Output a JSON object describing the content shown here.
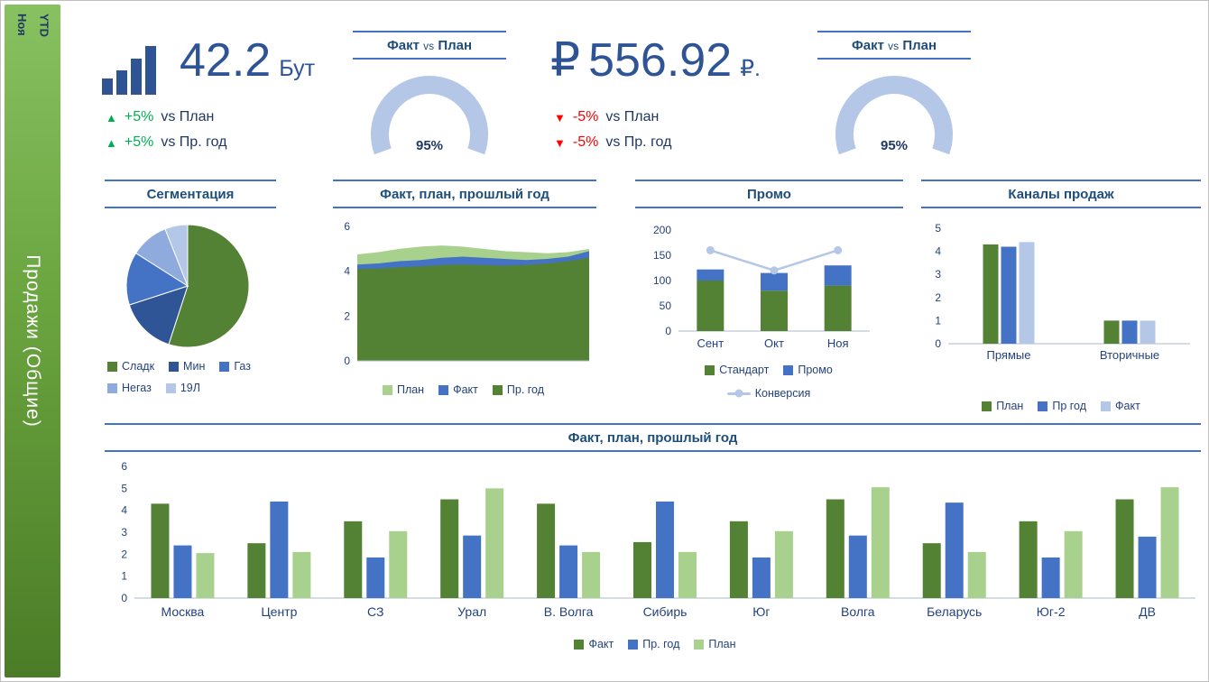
{
  "sidebar": {
    "period": "Ноя\nYTD",
    "title": "Продажи (Общие)"
  },
  "kpis": [
    {
      "currency": "",
      "value": "42.2",
      "unit": "Бут",
      "deltas": [
        {
          "glyph": "▲",
          "value": "+5%",
          "label": "vs План",
          "direction": "up"
        },
        {
          "glyph": "▲",
          "value": "+5%",
          "label": "vs Пр. год",
          "direction": "up"
        }
      ]
    },
    {
      "currency": "₽",
      "value": "556.92",
      "unit": "₽.",
      "deltas": [
        {
          "glyph": "▼",
          "value": "-5%",
          "label": "vs План",
          "direction": "down"
        },
        {
          "glyph": "▼",
          "value": "-5%",
          "label": "vs Пр. год",
          "direction": "down"
        }
      ]
    }
  ],
  "gauges": [
    {
      "title": [
        "Факт",
        "vs",
        "План"
      ],
      "value": 95,
      "label": "95%",
      "color": "#b4c7e7"
    },
    {
      "title": [
        "Факт",
        "vs",
        "План"
      ],
      "value": 95,
      "label": "95%",
      "color": "#b4c7e7"
    }
  ],
  "colors": {
    "dark_green": "#548235",
    "blue": "#4472c4",
    "light_green": "#a9d18e",
    "periwinkle": "#b4c7e7",
    "navy": "#1f3864",
    "value_blue": "#2f5496",
    "up_green": "#00b050",
    "down_red": "#ff0000",
    "title_line_blue": "#4472c4"
  },
  "chart_data": [
    {
      "id": "segmentation",
      "type": "pie",
      "title": "Сегментация",
      "labels": [
        "Сладк",
        "Мин",
        "Газ",
        "Негаз",
        "19Л"
      ],
      "values": [
        55,
        15,
        14,
        10,
        6
      ],
      "colors": [
        "#548235",
        "#2f5597",
        "#4472c4",
        "#8faadc",
        "#b4c7e7"
      ],
      "legend_position": "bottom"
    },
    {
      "id": "fact-plan-prev-area",
      "type": "area",
      "title": "Факт, план, прошлый год",
      "ylim": [
        0,
        6
      ],
      "yticks": [
        0,
        2,
        4,
        6
      ],
      "series": [
        {
          "name": "План",
          "color": "#a9d18e",
          "values": [
            4.75,
            4.85,
            5.0,
            5.1,
            5.15,
            5.1,
            5.0,
            4.9,
            4.85,
            4.8,
            4.85,
            5.0
          ]
        },
        {
          "name": "Факт",
          "color": "#4472c4",
          "values": [
            4.3,
            4.35,
            4.45,
            4.5,
            4.6,
            4.65,
            4.6,
            4.55,
            4.5,
            4.55,
            4.65,
            4.9
          ]
        },
        {
          "name": "Пр. год",
          "color": "#548235",
          "values": [
            4.1,
            4.12,
            4.18,
            4.22,
            4.28,
            4.3,
            4.28,
            4.25,
            4.28,
            4.35,
            4.45,
            4.6
          ]
        }
      ],
      "legend_position": "bottom"
    },
    {
      "id": "promo",
      "type": "stacked-bar-line",
      "title": "Промо",
      "categories": [
        "Сент",
        "Окт",
        "Ноя"
      ],
      "ylim": [
        0,
        200
      ],
      "yticks": [
        0,
        50,
        100,
        150,
        200
      ],
      "bars": [
        {
          "name": "Стандарт",
          "color": "#548235",
          "values": [
            100,
            80,
            90
          ]
        },
        {
          "name": "Промо",
          "color": "#4472c4",
          "values": [
            22,
            35,
            40
          ]
        }
      ],
      "line": {
        "name": "Конверсия",
        "color": "#b4c7e7",
        "values": [
          160,
          120,
          160
        ]
      },
      "legend_position": "bottom"
    },
    {
      "id": "channels",
      "type": "grouped-bar",
      "title": "Каналы продаж",
      "categories": [
        "Прямые",
        "Вторичные"
      ],
      "ylim": [
        0,
        5
      ],
      "yticks": [
        0,
        1,
        2,
        3,
        4,
        5
      ],
      "series": [
        {
          "name": "План",
          "color": "#548235",
          "values": [
            4.3,
            1.0
          ]
        },
        {
          "name": "Пр год",
          "color": "#4472c4",
          "values": [
            4.2,
            1.0
          ]
        },
        {
          "name": "Факт",
          "color": "#b4c7e7",
          "values": [
            4.4,
            1.0
          ]
        }
      ],
      "legend_position": "bottom"
    },
    {
      "id": "regions",
      "type": "grouped-bar",
      "title": "Факт, план, прошлый год",
      "categories": [
        "Москва",
        "Центр",
        "СЗ",
        "Урал",
        "В. Волга",
        "Сибирь",
        "Юг",
        "Волга",
        "Беларусь",
        "Юг-2",
        "ДВ"
      ],
      "ylim": [
        0,
        6
      ],
      "yticks": [
        0,
        1,
        2,
        3,
        4,
        5,
        6
      ],
      "series": [
        {
          "name": "Факт",
          "color": "#548235",
          "values": [
            4.3,
            2.5,
            3.5,
            4.5,
            4.3,
            2.55,
            3.5,
            4.5,
            2.5,
            3.5,
            4.5
          ]
        },
        {
          "name": "Пр. год",
          "color": "#4472c4",
          "values": [
            2.4,
            4.4,
            1.85,
            2.85,
            2.4,
            4.4,
            1.85,
            2.85,
            4.35,
            1.85,
            2.8
          ]
        },
        {
          "name": "План",
          "color": "#a9d18e",
          "values": [
            2.05,
            2.1,
            3.05,
            5.0,
            2.1,
            2.1,
            3.05,
            5.05,
            2.1,
            3.05,
            5.05
          ]
        }
      ],
      "legend_position": "bottom"
    }
  ]
}
